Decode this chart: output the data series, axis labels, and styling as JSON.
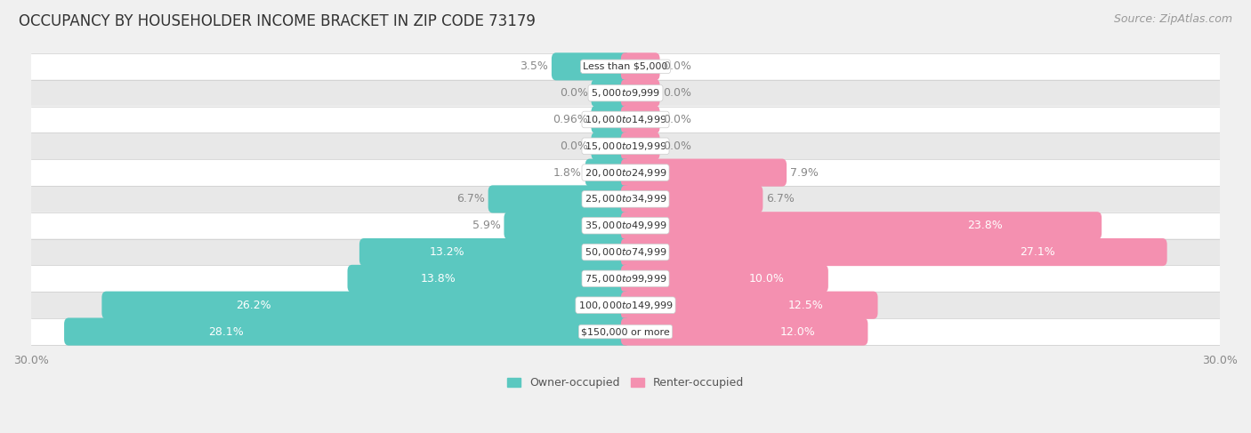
{
  "title": "OCCUPANCY BY HOUSEHOLDER INCOME BRACKET IN ZIP CODE 73179",
  "source": "Source: ZipAtlas.com",
  "categories": [
    "Less than $5,000",
    "$5,000 to $9,999",
    "$10,000 to $14,999",
    "$15,000 to $19,999",
    "$20,000 to $24,999",
    "$25,000 to $34,999",
    "$35,000 to $49,999",
    "$50,000 to $74,999",
    "$75,000 to $99,999",
    "$100,000 to $149,999",
    "$150,000 or more"
  ],
  "owner_values": [
    3.5,
    0.0,
    0.96,
    0.0,
    1.8,
    6.7,
    5.9,
    13.2,
    13.8,
    26.2,
    28.1
  ],
  "renter_values": [
    0.0,
    0.0,
    0.0,
    0.0,
    7.9,
    6.7,
    23.8,
    27.1,
    10.0,
    12.5,
    12.0
  ],
  "owner_color": "#5BC8C0",
  "renter_color": "#F490B0",
  "bar_height": 0.58,
  "min_stub": 1.5,
  "xlim": 30.0,
  "background_color": "#f0f0f0",
  "row_bg_even": "#ffffff",
  "row_bg_odd": "#e8e8e8",
  "label_color_outside": "#888888",
  "label_color_inside": "#ffffff",
  "title_fontsize": 12,
  "source_fontsize": 9,
  "label_fontsize": 9,
  "cat_fontsize": 8,
  "axis_label_fontsize": 9,
  "legend_fontsize": 9,
  "inside_threshold": 8.0
}
